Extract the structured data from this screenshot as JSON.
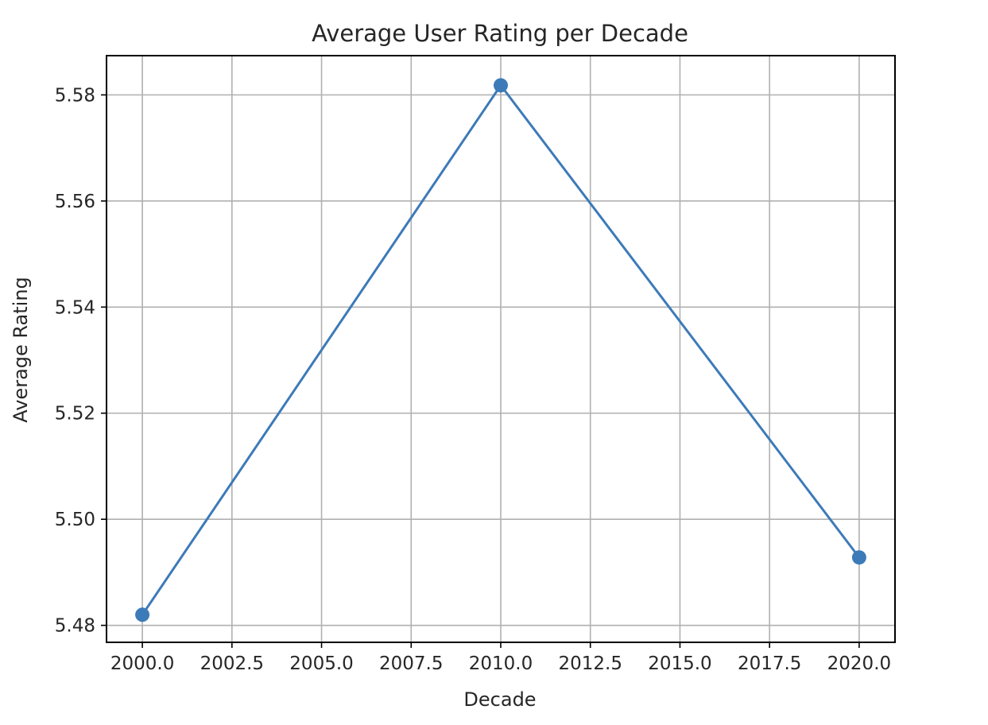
{
  "chart_data": {
    "type": "line",
    "title": "Average User Rating per Decade",
    "xlabel": "Decade",
    "ylabel": "Average Rating",
    "x": [
      2000,
      2010,
      2020
    ],
    "series": [
      {
        "values": [
          5.482,
          5.5818,
          5.4928
        ],
        "color": "#3d7ab8",
        "marker": "circle"
      }
    ],
    "xlim": [
      1999,
      2021
    ],
    "ylim": [
      5.4768,
      5.5874
    ],
    "xticks": [
      "2000.0",
      "2002.5",
      "2005.0",
      "2007.5",
      "2010.0",
      "2012.5",
      "2015.0",
      "2017.5",
      "2020.0"
    ],
    "yticks": [
      "5.48",
      "5.50",
      "5.52",
      "5.54",
      "5.56",
      "5.58"
    ],
    "grid": true
  }
}
